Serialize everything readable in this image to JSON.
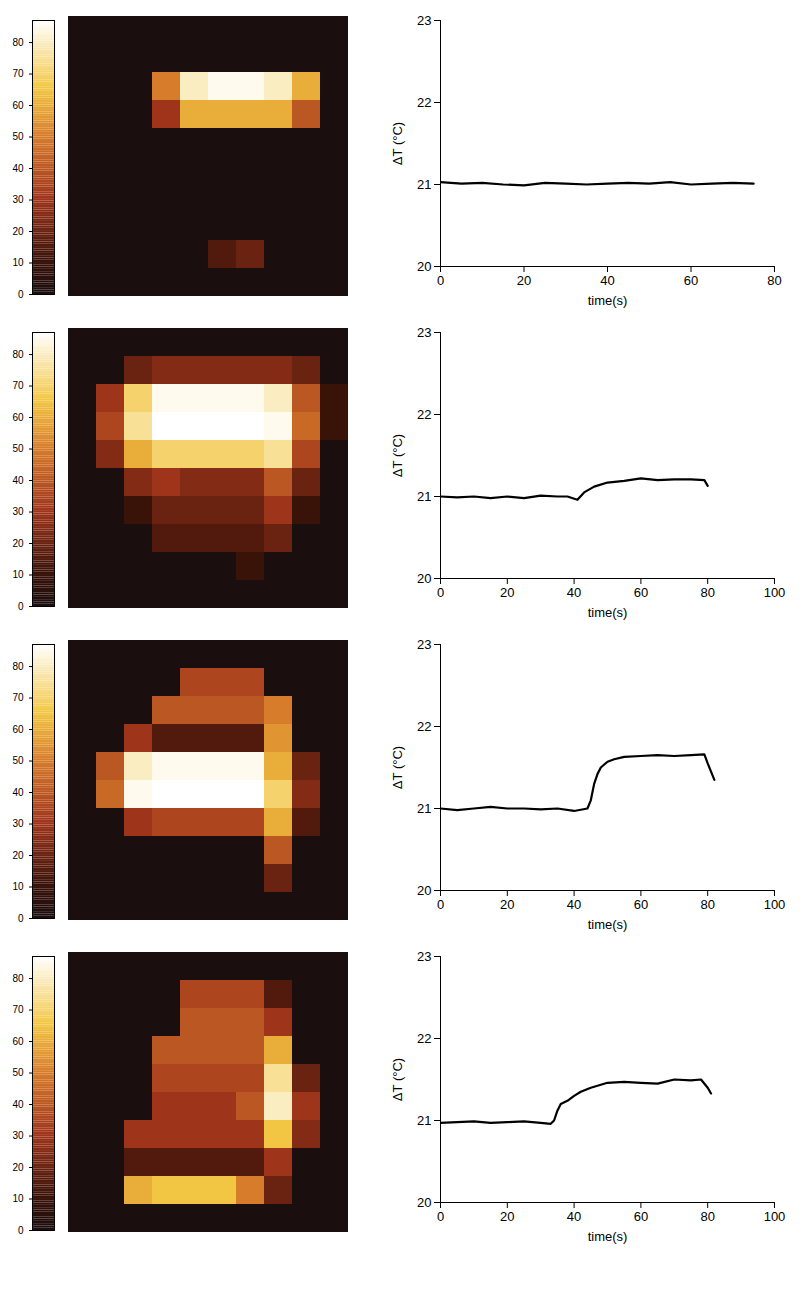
{
  "chart_data": [
    {
      "type": "heatmap",
      "tick_labels": false,
      "colorbar_range": [
        0,
        87
      ],
      "colorbar_ticks": [
        0,
        10,
        20,
        30,
        40,
        50,
        60,
        70,
        80
      ],
      "cells": [
        [
          0,
          0,
          0,
          0,
          0,
          0,
          0,
          0,
          0,
          0
        ],
        [
          0,
          0,
          0,
          0,
          0,
          0,
          0,
          0,
          0,
          0
        ],
        [
          0,
          0,
          0,
          50,
          80,
          85,
          85,
          80,
          60,
          0
        ],
        [
          0,
          0,
          0,
          30,
          60,
          60,
          60,
          60,
          40,
          0
        ],
        [
          0,
          0,
          0,
          0,
          0,
          0,
          0,
          0,
          0,
          0
        ],
        [
          0,
          0,
          0,
          0,
          0,
          0,
          0,
          0,
          0,
          0
        ],
        [
          0,
          0,
          0,
          0,
          0,
          0,
          0,
          0,
          0,
          0
        ],
        [
          0,
          0,
          0,
          0,
          0,
          0,
          0,
          0,
          0,
          0
        ],
        [
          0,
          0,
          0,
          0,
          0,
          15,
          20,
          0,
          0,
          0
        ],
        [
          0,
          0,
          0,
          0,
          0,
          0,
          0,
          0,
          0,
          0
        ]
      ]
    },
    {
      "type": "line",
      "x_label": "time(s)",
      "y_label": "ΔT (°C)",
      "xlim": [
        0,
        80
      ],
      "xticks": [
        0,
        20,
        40,
        60,
        80
      ],
      "ylim": [
        20,
        23
      ],
      "yticks": [
        20,
        21,
        22,
        23
      ],
      "color": "#000000",
      "x": [
        0,
        5,
        10,
        15,
        20,
        25,
        30,
        35,
        40,
        45,
        50,
        55,
        60,
        65,
        70,
        75
      ],
      "values": [
        21.03,
        21.01,
        21.02,
        21.0,
        20.99,
        21.02,
        21.01,
        21.0,
        21.01,
        21.02,
        21.01,
        21.03,
        21.0,
        21.01,
        21.02,
        21.01
      ]
    },
    {
      "type": "heatmap",
      "tick_labels": false,
      "colorbar_range": [
        0,
        87
      ],
      "colorbar_ticks": [
        0,
        10,
        20,
        30,
        40,
        50,
        60,
        70,
        80
      ],
      "cells": [
        [
          0,
          0,
          0,
          0,
          0,
          0,
          0,
          0,
          0,
          0
        ],
        [
          0,
          0,
          20,
          25,
          25,
          25,
          25,
          25,
          20,
          0
        ],
        [
          0,
          30,
          70,
          85,
          85,
          85,
          85,
          80,
          40,
          10
        ],
        [
          0,
          35,
          75,
          87,
          87,
          87,
          87,
          85,
          45,
          10
        ],
        [
          0,
          25,
          60,
          70,
          70,
          70,
          70,
          75,
          35,
          0
        ],
        [
          0,
          0,
          25,
          30,
          25,
          25,
          25,
          40,
          20,
          0
        ],
        [
          0,
          0,
          10,
          20,
          20,
          20,
          20,
          30,
          10,
          0
        ],
        [
          0,
          0,
          0,
          15,
          15,
          15,
          15,
          20,
          0,
          0
        ],
        [
          0,
          0,
          0,
          0,
          0,
          0,
          10,
          0,
          0,
          0
        ],
        [
          0,
          0,
          0,
          0,
          0,
          0,
          0,
          0,
          0,
          0
        ]
      ]
    },
    {
      "type": "line",
      "x_label": "time(s)",
      "y_label": "ΔT (°C)",
      "xlim": [
        0,
        100
      ],
      "xticks": [
        0,
        20,
        40,
        60,
        80,
        100
      ],
      "ylim": [
        20,
        23
      ],
      "yticks": [
        20,
        21,
        22,
        23
      ],
      "color": "#000000",
      "x": [
        0,
        5,
        10,
        15,
        20,
        25,
        30,
        35,
        38,
        41,
        43,
        46,
        50,
        55,
        60,
        65,
        70,
        75,
        79,
        80
      ],
      "values": [
        21.0,
        20.99,
        21.0,
        20.98,
        21.0,
        20.98,
        21.01,
        21.0,
        21.0,
        20.96,
        21.05,
        21.12,
        21.17,
        21.19,
        21.22,
        21.2,
        21.21,
        21.21,
        21.2,
        21.13
      ]
    },
    {
      "type": "heatmap",
      "tick_labels": false,
      "colorbar_range": [
        0,
        87
      ],
      "colorbar_ticks": [
        0,
        10,
        20,
        30,
        40,
        50,
        60,
        70,
        80
      ],
      "cells": [
        [
          0,
          0,
          0,
          0,
          0,
          0,
          0,
          0,
          0,
          0
        ],
        [
          0,
          0,
          0,
          0,
          35,
          35,
          35,
          0,
          0,
          0
        ],
        [
          0,
          0,
          0,
          40,
          40,
          40,
          40,
          50,
          0,
          0
        ],
        [
          0,
          0,
          30,
          15,
          15,
          15,
          15,
          55,
          0,
          0
        ],
        [
          0,
          40,
          80,
          85,
          85,
          85,
          85,
          60,
          20,
          0
        ],
        [
          0,
          45,
          85,
          87,
          87,
          87,
          87,
          70,
          25,
          0
        ],
        [
          0,
          0,
          30,
          35,
          35,
          35,
          35,
          60,
          15,
          0
        ],
        [
          0,
          0,
          0,
          0,
          0,
          0,
          0,
          40,
          0,
          0
        ],
        [
          0,
          0,
          0,
          0,
          0,
          0,
          0,
          20,
          0,
          0
        ],
        [
          0,
          0,
          0,
          0,
          0,
          0,
          0,
          0,
          0,
          0
        ]
      ]
    },
    {
      "type": "line",
      "x_label": "time(s)",
      "y_label": "ΔT (°C)",
      "xlim": [
        0,
        100
      ],
      "xticks": [
        0,
        20,
        40,
        60,
        80,
        100
      ],
      "ylim": [
        20,
        23
      ],
      "yticks": [
        20,
        21,
        22,
        23
      ],
      "color": "#000000",
      "x": [
        0,
        5,
        10,
        15,
        20,
        25,
        30,
        35,
        40,
        44,
        45,
        46,
        47,
        48,
        50,
        52,
        55,
        60,
        65,
        70,
        75,
        79,
        80,
        81,
        82
      ],
      "values": [
        21.0,
        20.98,
        21.0,
        21.02,
        21.0,
        21.0,
        20.99,
        21.0,
        20.97,
        21.0,
        21.1,
        21.3,
        21.42,
        21.5,
        21.57,
        21.6,
        21.63,
        21.64,
        21.65,
        21.64,
        21.65,
        21.66,
        21.55,
        21.45,
        21.35
      ]
    },
    {
      "type": "heatmap",
      "tick_labels": false,
      "colorbar_range": [
        0,
        87
      ],
      "colorbar_ticks": [
        0,
        10,
        20,
        30,
        40,
        50,
        60,
        70,
        80
      ],
      "cells": [
        [
          0,
          0,
          0,
          0,
          0,
          0,
          0,
          0,
          0,
          0
        ],
        [
          0,
          0,
          0,
          0,
          35,
          35,
          35,
          15,
          0,
          0
        ],
        [
          0,
          0,
          0,
          0,
          40,
          40,
          40,
          30,
          0,
          0
        ],
        [
          0,
          0,
          0,
          40,
          40,
          40,
          40,
          60,
          0,
          0
        ],
        [
          0,
          0,
          0,
          35,
          35,
          35,
          35,
          75,
          20,
          0
        ],
        [
          0,
          0,
          0,
          30,
          30,
          30,
          40,
          80,
          30,
          0
        ],
        [
          0,
          0,
          30,
          30,
          30,
          30,
          30,
          65,
          25,
          0
        ],
        [
          0,
          0,
          15,
          15,
          15,
          15,
          15,
          30,
          0,
          0
        ],
        [
          0,
          0,
          60,
          65,
          65,
          65,
          50,
          20,
          0,
          0
        ],
        [
          0,
          0,
          0,
          0,
          0,
          0,
          0,
          0,
          0,
          0
        ]
      ]
    },
    {
      "type": "line",
      "x_label": "time(s)",
      "y_label": "ΔT (°C)",
      "xlim": [
        0,
        100
      ],
      "xticks": [
        0,
        20,
        40,
        60,
        80,
        100
      ],
      "ylim": [
        20,
        23
      ],
      "yticks": [
        20,
        21,
        22,
        23
      ],
      "color": "#000000",
      "x": [
        0,
        5,
        10,
        15,
        20,
        25,
        30,
        33,
        34,
        35,
        36,
        38,
        40,
        42,
        45,
        50,
        55,
        60,
        65,
        70,
        75,
        78,
        80,
        81
      ],
      "values": [
        20.97,
        20.98,
        20.99,
        20.97,
        20.98,
        20.99,
        20.97,
        20.96,
        21.0,
        21.12,
        21.2,
        21.24,
        21.3,
        21.35,
        21.4,
        21.46,
        21.47,
        21.46,
        21.45,
        21.5,
        21.49,
        21.5,
        21.4,
        21.33
      ]
    }
  ]
}
